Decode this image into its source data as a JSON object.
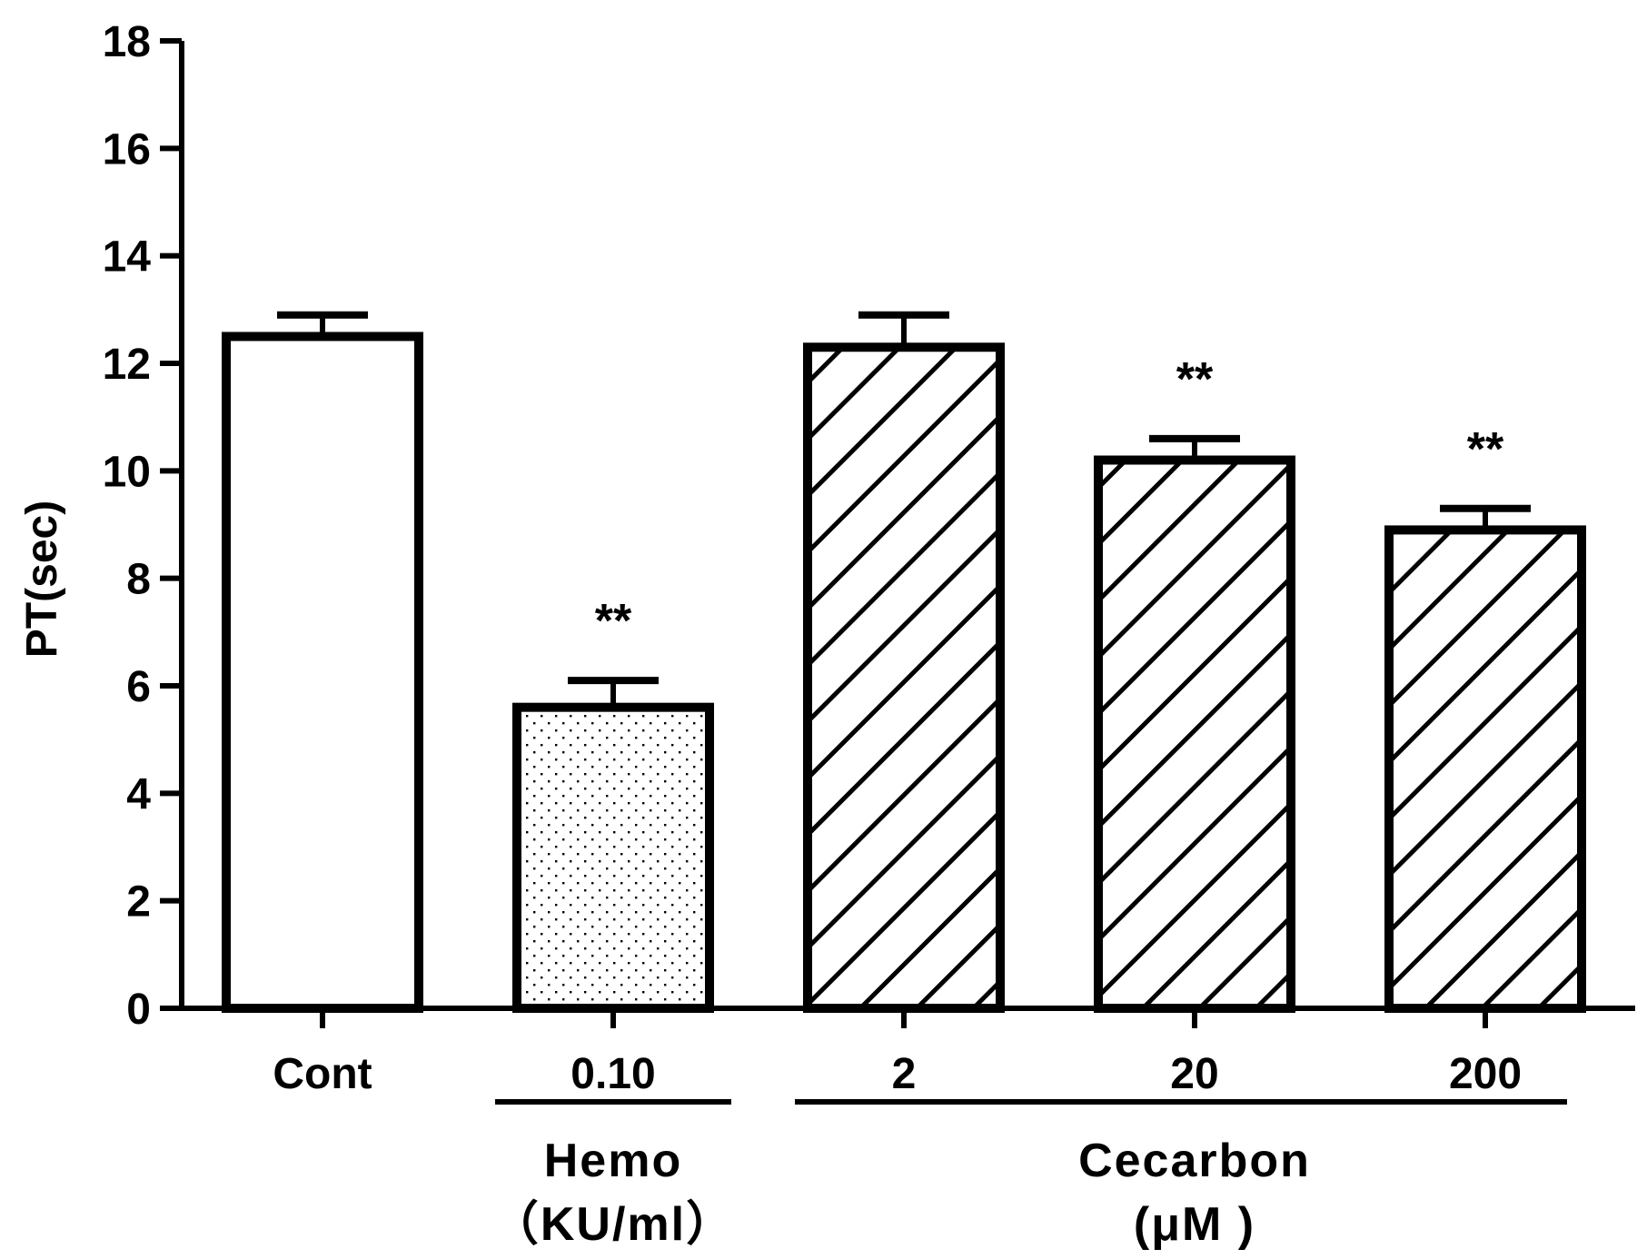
{
  "chart_data": {
    "type": "bar",
    "title": "",
    "ylabel": "PT(sec)",
    "xlabel": "",
    "ylim": [
      0,
      18
    ],
    "yticks": [
      "0",
      "2",
      "4",
      "6",
      "8",
      "10",
      "12",
      "14",
      "16",
      "18"
    ],
    "categories": [
      "Cont",
      "0.10",
      "2",
      "20",
      "200"
    ],
    "values": [
      12.5,
      5.6,
      12.3,
      10.2,
      8.9
    ],
    "errors": [
      0.4,
      0.5,
      0.6,
      0.4,
      0.4
    ],
    "significance": [
      "",
      "**",
      "",
      "**",
      "**"
    ],
    "fills": [
      "plain",
      "dotted",
      "hatched",
      "hatched",
      "hatched"
    ],
    "groups": [
      {
        "label_line1": "Hemo",
        "label_line2": "（KU/ml）",
        "categories": [
          "0.10"
        ]
      },
      {
        "label_line1": "Cecarbon",
        "label_line2": "(μM )",
        "categories": [
          "2",
          "20",
          "200"
        ]
      }
    ],
    "grid": false,
    "legend": "none",
    "colors": {
      "stroke": "#000000",
      "background": "#ffffff"
    }
  }
}
